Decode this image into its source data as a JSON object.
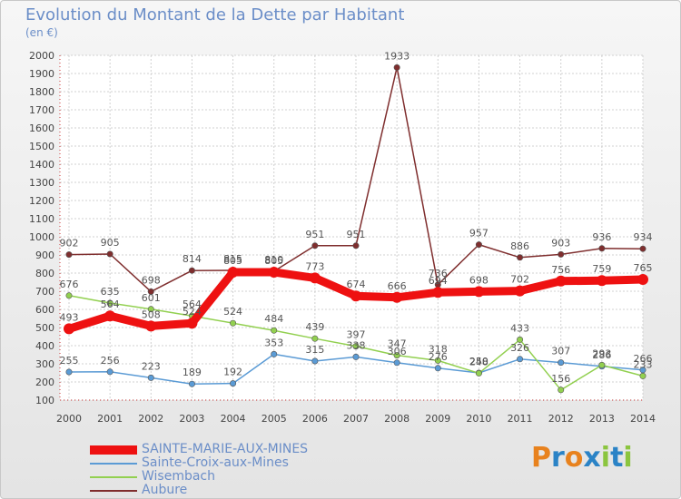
{
  "title": "Evolution du Montant de la Dette par Habitant",
  "subtitle": "(en €)",
  "logo": {
    "letters": [
      "P",
      "r",
      "o",
      "x",
      "i",
      "t",
      "i"
    ],
    "colors": [
      "#e8821e",
      "#2b83c6",
      "#e8821e",
      "#2b83c6",
      "#8bc53f",
      "#2b83c6",
      "#8bc53f"
    ]
  },
  "chart_data": {
    "type": "line",
    "title": "Evolution du Montant de la Dette par Habitant",
    "ylabel": "(en €)",
    "ylim": [
      100,
      2000
    ],
    "yticks": [
      "100",
      "200",
      "300",
      "400",
      "500",
      "600",
      "700",
      "800",
      "900",
      "1000",
      "1100",
      "1200",
      "1300",
      "1400",
      "1500",
      "1600",
      "1700",
      "1800",
      "1900",
      "2000"
    ],
    "categories": [
      "2000",
      "2001",
      "2002",
      "2003",
      "2004",
      "2005",
      "2006",
      "2007",
      "2008",
      "2009",
      "2010",
      "2011",
      "2012",
      "2013",
      "2014"
    ],
    "grid": true,
    "legend": "bottom-left",
    "series": [
      {
        "name": "SAINTE-MARIE-AUX-MINES",
        "color": "#ee1111",
        "emphasis": true,
        "values": [
          493,
          564,
          508,
          524,
          805,
          805,
          773,
          674,
          666,
          694,
          698,
          702,
          756,
          759,
          765
        ]
      },
      {
        "name": "Sainte-Croix-aux-Mines",
        "color": "#5b9bd5",
        "emphasis": false,
        "values": [
          255,
          256,
          223,
          189,
          192,
          353,
          315,
          338,
          306,
          276,
          250,
          326,
          307,
          286,
          266
        ]
      },
      {
        "name": "Wisembach",
        "color": "#92d050",
        "emphasis": false,
        "values": [
          676,
          635,
          601,
          564,
          524,
          484,
          439,
          397,
          347,
          318,
          248,
          433,
          156,
          293,
          233
        ]
      },
      {
        "name": "Aubure",
        "color": "#7f2e2e",
        "emphasis": false,
        "values": [
          902,
          905,
          698,
          814,
          815,
          810,
          951,
          951,
          1933,
          736,
          957,
          886,
          903,
          936,
          934
        ]
      }
    ]
  }
}
